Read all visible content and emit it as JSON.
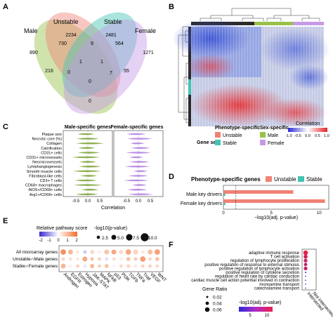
{
  "panels": {
    "A": "A",
    "B": "B",
    "C": "C",
    "D": "D",
    "E": "E",
    "F": "F"
  },
  "venn": {
    "sets": [
      "Male",
      "Unstable",
      "Stable",
      "Female"
    ],
    "counts": [
      "890",
      "2234",
      "2481",
      "1271",
      "730",
      "9",
      "564",
      "1",
      "216",
      "1",
      "55",
      "0",
      "7",
      "0",
      "0"
    ],
    "colors": {
      "male": "#97c14a",
      "unstable": "#ef8275",
      "stable": "#43c4b4",
      "female": "#c69ae6"
    }
  },
  "heatmap": {
    "legend_title": "Correlation",
    "legend_ticks": [
      "-1.0",
      "-0.5",
      "0.0",
      "0.5",
      "1.0"
    ],
    "gene_sets_label": "Gene sets",
    "phenotype_title": "Phenotype-specific",
    "phenotype_items": [
      "Unstable",
      "Stable"
    ],
    "sex_title": "Sex-specific",
    "sex_items": [
      "Male",
      "Female"
    ]
  },
  "violin": {
    "title_male": "Male-specific genes",
    "title_female": "Female-specific genes",
    "xlabel": "Correlation",
    "ticks": [
      "-0.5",
      "0.0",
      "0.5"
    ],
    "rows": [
      "Plaque size",
      "Necrotic core (%)",
      "Collagen",
      "Calcification",
      "CD31+ cells",
      "CD31+ microvessels",
      "Neomicrovessels",
      "Lymphangiogenesis",
      "Smooth muscle cells",
      "Fibroblast-like cells",
      "CD3+ T cells",
      "CD68+ macrophages",
      "iNOS+/CD68+ cells",
      "Arg1+/CD68+ cells"
    ]
  },
  "chart_data": [
    {
      "type": "bar",
      "title": "Phenotype-specific genes",
      "legend": [
        "Unstable",
        "Stable"
      ],
      "categories": [
        "Male key drivers",
        "Female key drivers"
      ],
      "series": [
        {
          "name": "Unstable",
          "values": [
            7.3,
            10.6
          ]
        },
        {
          "name": "Stable",
          "values": [
            0.2,
            0.2
          ]
        }
      ],
      "xlabel": "−log10(adj. p-value)",
      "xlim": [
        0,
        11
      ],
      "xticks": [
        "0",
        "5",
        "10"
      ],
      "threshold": 1.3
    },
    {
      "type": "scatter",
      "legend_title": "Relative pathway score",
      "legend_ticks": [
        "-2",
        "-1",
        "0",
        "1",
        "2"
      ],
      "size_title": "-log10(p-value)",
      "size_values": [
        "2.5",
        "5.0",
        "7.5",
        "10.0"
      ],
      "rows": [
        "All microarray genes",
        "Unstable∩Male genes",
        "Stable∩Female genes"
      ],
      "columns": [
        "Androgen",
        "EGFR",
        "Estrogen",
        "Hypoxia",
        "JAK-STAT",
        "MAPK",
        "NFkB",
        "p53",
        "PI3K",
        "TGFb",
        "TNFa",
        "Trail",
        "VEGF",
        "WNT"
      ],
      "scores": [
        [
          1.5,
          1.0,
          0.3,
          -0.5,
          0.5,
          0.2,
          0.8,
          1.2,
          0.5,
          1.2,
          0.6,
          0.3,
          0.9,
          1.3
        ],
        [
          0.6,
          0.4,
          0.3,
          1.2,
          0.8,
          0.6,
          -0.3,
          0.4,
          0.2,
          0.8,
          0.7,
          1.3,
          0.5,
          0.8
        ],
        [
          1.0,
          0.2,
          0.6,
          -0.2,
          1.0,
          0.6,
          0.8,
          -0.1,
          0.5,
          0.6,
          0.3,
          0.6,
          0.6,
          0.5
        ]
      ],
      "pvals": [
        [
          6,
          5,
          3,
          3,
          4,
          3,
          5,
          5,
          4,
          6,
          5,
          3,
          5,
          6
        ],
        [
          3,
          3,
          2.5,
          5,
          3,
          3,
          2.5,
          3,
          3,
          4,
          3,
          6,
          3,
          4
        ],
        [
          5,
          3,
          3,
          3,
          4,
          3,
          4,
          2.5,
          3,
          3,
          3,
          3,
          3,
          3
        ]
      ]
    },
    {
      "type": "scatter",
      "legend_title": "-log10(adj. p-value)",
      "legend_ticks": [
        "5",
        "10"
      ],
      "size_title": "Gene Ratio",
      "size_values": [
        "0.02",
        "0.04",
        "0.06"
      ],
      "columns": [
        "Intersected",
        "Not intersected"
      ],
      "rows": [
        "adaptive immune response",
        "T cell activation",
        "regulation of lymphocyte proliferation",
        "positive regulation of response to external stimulus",
        "positive regulation of lymphocyte activation",
        "positive regulation of cytokine secretion",
        "regulation of heart rate by cardiac conduction",
        "cardiac muscle cell action potential involved in contraction",
        "monoamine transport",
        "catecholamine transport"
      ],
      "ratios": [
        0.06,
        0.05,
        0.045,
        0.04,
        0.045,
        0.01,
        0.005,
        0.005,
        0.005,
        0.005
      ],
      "neglog": [
        12,
        11,
        10,
        9.5,
        10,
        2,
        1.5,
        1.5,
        1.5,
        1.5
      ]
    }
  ]
}
